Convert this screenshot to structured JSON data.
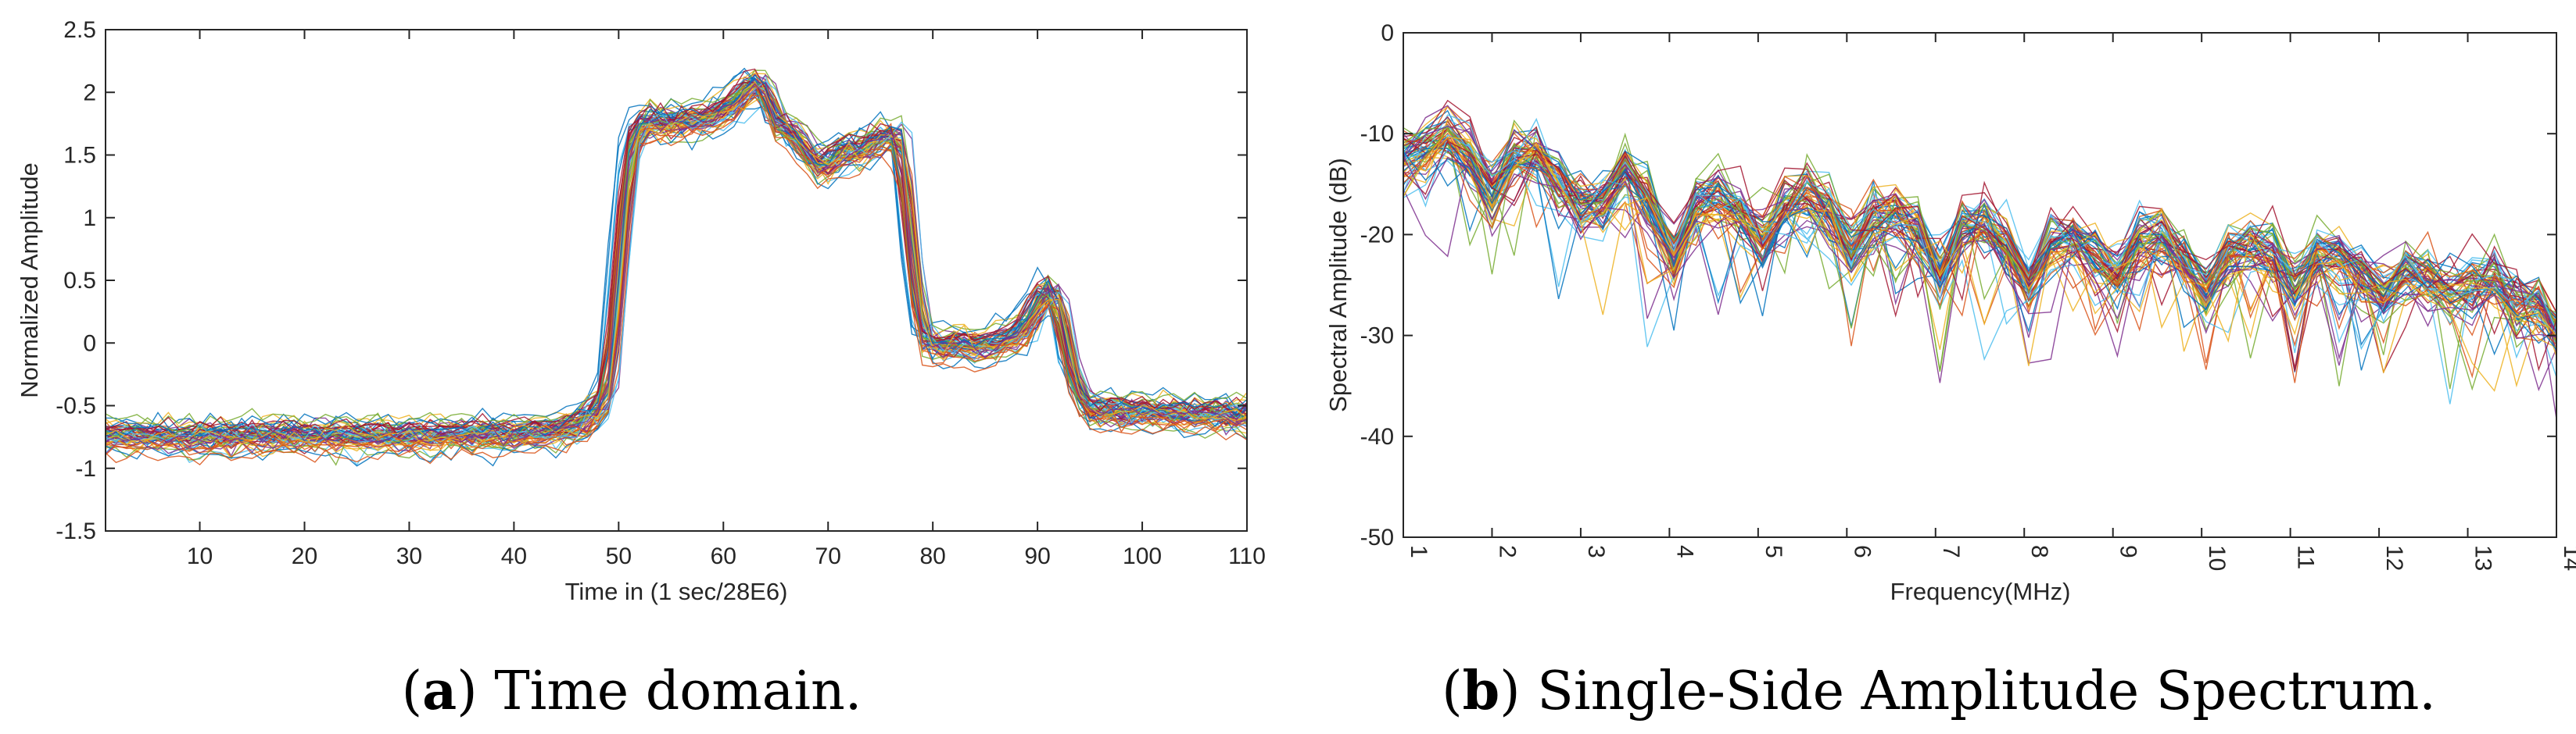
{
  "chart_data": [
    {
      "type": "line",
      "caption_letter": "a",
      "caption_text": " Time domain.",
      "caption_open": "(",
      "caption_close": ")",
      "xlabel": "Time in (1 sec/28E6)",
      "ylabel": "Normalized Amplitude",
      "xlim": [
        1,
        110
      ],
      "ylim": [
        -1.5,
        2.5
      ],
      "xticks": [
        10,
        20,
        30,
        40,
        50,
        60,
        70,
        80,
        90,
        100,
        110
      ],
      "xtick_labels": [
        "10",
        "20",
        "30",
        "40",
        "50",
        "60",
        "70",
        "80",
        "90",
        "100",
        "110"
      ],
      "yticks": [
        -1.5,
        -1,
        -0.5,
        0,
        0.5,
        1,
        1.5,
        2,
        2.5
      ],
      "ytick_labels": [
        "-1.5",
        "-1",
        "-0.5",
        "0",
        "0.5",
        "1",
        "1.5",
        "2",
        "2.5"
      ],
      "series_count": 60,
      "mean_curve": {
        "x": [
          1,
          10,
          20,
          30,
          40,
          44,
          46,
          47,
          48,
          49,
          50,
          51,
          52,
          53,
          55,
          57,
          59,
          60,
          61,
          62,
          63,
          64,
          65,
          66,
          67,
          68,
          69,
          70,
          71,
          72,
          73,
          74,
          75,
          76,
          77,
          78,
          79,
          80,
          82,
          84,
          86,
          88,
          89,
          90,
          91,
          92,
          93,
          94,
          95,
          97,
          100,
          105,
          110
        ],
        "y": [
          -0.76,
          -0.77,
          -0.75,
          -0.76,
          -0.74,
          -0.72,
          -0.68,
          -0.62,
          -0.55,
          -0.42,
          0.55,
          1.5,
          1.72,
          1.75,
          1.74,
          1.76,
          1.78,
          1.85,
          1.9,
          1.98,
          2.08,
          2.0,
          1.72,
          1.7,
          1.62,
          1.5,
          1.38,
          1.42,
          1.5,
          1.52,
          1.5,
          1.57,
          1.62,
          1.65,
          1.6,
          0.6,
          0.02,
          -0.05,
          -0.02,
          -0.05,
          -0.02,
          0.05,
          0.12,
          0.3,
          0.42,
          0.3,
          -0.2,
          -0.45,
          -0.55,
          -0.56,
          -0.56,
          -0.58,
          -0.6
        ]
      },
      "spread": 0.08
    },
    {
      "type": "line",
      "caption_letter": "b",
      "caption_text": " Single-Side Amplitude Spectrum.",
      "caption_open": "(",
      "caption_close": ")",
      "xlabel": "Frequency(MHz)",
      "ylabel": "Spectral Amplitude (dB)",
      "xlim": [
        1,
        14
      ],
      "ylim": [
        -50,
        0
      ],
      "xticks": [
        1,
        2,
        3,
        4,
        5,
        6,
        7,
        8,
        9,
        10,
        11,
        12,
        13,
        14
      ],
      "xtick_labels": [
        "1",
        "2",
        "3",
        "4",
        "5",
        "6",
        "7",
        "8",
        "9",
        "10",
        "11",
        "12",
        "13",
        "14"
      ],
      "yticks": [
        -50,
        -40,
        -30,
        -20,
        -10,
        0
      ],
      "ytick_labels": [
        "-50",
        "-40",
        "-30",
        "-20",
        "-10",
        "0"
      ],
      "series_count": 60,
      "mean_curve": {
        "x": [
          1,
          1.25,
          1.5,
          1.75,
          2.0,
          2.25,
          2.5,
          2.75,
          3.0,
          3.25,
          3.5,
          3.75,
          4.05,
          4.3,
          4.55,
          4.8,
          5.05,
          5.3,
          5.55,
          5.8,
          6.05,
          6.3,
          6.55,
          6.8,
          7.05,
          7.3,
          7.55,
          7.8,
          8.05,
          8.3,
          8.55,
          8.8,
          9.05,
          9.3,
          9.55,
          9.8,
          10.05,
          10.3,
          10.55,
          10.8,
          11.05,
          11.3,
          11.55,
          11.8,
          12.05,
          12.3,
          12.55,
          12.8,
          13.05,
          13.3,
          13.55,
          13.8,
          14.0
        ],
        "y": [
          -12.5,
          -11.8,
          -10.0,
          -12.0,
          -16.0,
          -12.0,
          -12.5,
          -15.0,
          -17.5,
          -17.0,
          -14.0,
          -16.5,
          -22.0,
          -17.0,
          -16.5,
          -18.0,
          -21.0,
          -17.5,
          -16.0,
          -18.0,
          -21.5,
          -18.5,
          -18.0,
          -19.5,
          -24.0,
          -19.5,
          -19.0,
          -21.0,
          -25.0,
          -21.0,
          -20.5,
          -22.0,
          -24.0,
          -21.0,
          -20.5,
          -22.5,
          -26.0,
          -22.0,
          -21.0,
          -22.0,
          -25.0,
          -22.0,
          -22.5,
          -24.0,
          -26.0,
          -23.5,
          -24.5,
          -26.0,
          -25.0,
          -24.5,
          -27.0,
          -27.0,
          -30.0
        ]
      },
      "spread": 1.8
    }
  ]
}
